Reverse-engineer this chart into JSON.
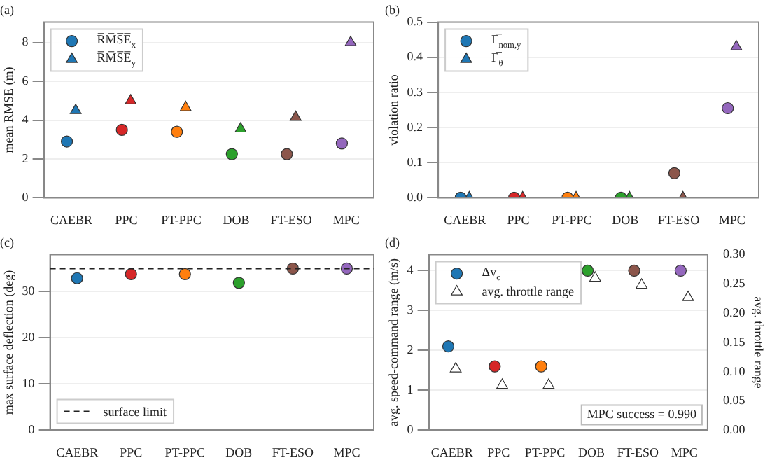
{
  "chart_data": [
    {
      "type": "scatter",
      "title": "(a)",
      "ylabel": "mean RMSE (m)",
      "categories": [
        "CAEBR",
        "PPC",
        "PT-PPC",
        "DOB",
        "FT-ESO",
        "MPC"
      ],
      "ylim": [
        0,
        9.05
      ],
      "yticks": [
        0,
        2,
        4,
        6,
        8
      ],
      "grid": "y",
      "legend": "top left",
      "series": [
        {
          "name": "R̅M̅S̅E̅$_{x}$",
          "marker": "circle",
          "colors": [
            "#1f77b4",
            "#d62728",
            "#ff7f0e",
            "#2ca02c",
            "#8c564b",
            "#9467bd"
          ],
          "values": [
            2.9,
            3.5,
            3.4,
            2.25,
            2.25,
            2.8
          ]
        },
        {
          "name": "R̅M̅S̅E̅$_{y}$",
          "marker": "triangle",
          "colors": [
            "#1f77b4",
            "#d62728",
            "#ff7f0e",
            "#2ca02c",
            "#8c564b",
            "#9467bd"
          ],
          "values": [
            4.5,
            5.0,
            4.65,
            3.55,
            4.15,
            8.0
          ]
        }
      ]
    },
    {
      "type": "scatter",
      "title": "(b)",
      "ylabel": "violation ratio",
      "categories": [
        "CAEBR",
        "PPC",
        "PT-PPC",
        "DOB",
        "FT-ESO",
        "MPC"
      ],
      "ylim": [
        0,
        0.5
      ],
      "yticks": [
        {
          "value": 0,
          "label": "0.0"
        },
        {
          "value": 0.1,
          "label": "0.1"
        },
        {
          "value": 0.2,
          "label": "0.2"
        },
        {
          "value": 0.3,
          "label": "0.3"
        },
        {
          "value": 0.4,
          "label": "0.4"
        },
        {
          "value": 0.5,
          "label": "0.5"
        }
      ],
      "grid": "y",
      "legend": "top left",
      "series": [
        {
          "name": "Γ̅$_{nom,y}$",
          "marker": "circle",
          "colors": [
            "#1f77b4",
            "#d62728",
            "#ff7f0e",
            "#2ca02c",
            "#8c564b",
            "#9467bd"
          ],
          "values": [
            0,
            0,
            0,
            0,
            0.07,
            0.255
          ]
        },
        {
          "name": "Γ̅$_{θ}$",
          "marker": "triangle",
          "colors": [
            "#1f77b4",
            "#d62728",
            "#ff7f0e",
            "#2ca02c",
            "#8c564b",
            "#9467bd"
          ],
          "values": [
            0,
            0,
            0,
            0,
            0,
            0.43
          ]
        }
      ]
    },
    {
      "type": "scatter",
      "title": "(c)",
      "ylabel": "max surface deflection (deg)",
      "categories": [
        "CAEBR",
        "PPC",
        "PT-PPC",
        "DOB",
        "FT-ESO",
        "MPC"
      ],
      "ylim": [
        0,
        38
      ],
      "yticks": [
        0,
        10,
        20,
        30
      ],
      "grid": "y",
      "legend": "bottom left",
      "ref_lines": [
        {
          "axis": "y",
          "value": 35,
          "label": "surface limit",
          "color": "#222222",
          "line_style": "dashed"
        }
      ],
      "series": [
        {
          "marker": "circle",
          "colors": [
            "#1f77b4",
            "#d62728",
            "#ff7f0e",
            "#2ca02c",
            "#8c564b",
            "#9467bd"
          ],
          "values": [
            32.9,
            33.8,
            33.8,
            31.9,
            35,
            35
          ]
        }
      ]
    },
    {
      "type": "scatter",
      "title": "(d)",
      "ylabel": "avg. speed-command range (m/s)",
      "y2label": "avg. throttle range",
      "categories": [
        "CAEBR",
        "PPC",
        "PT-PPC",
        "DOB",
        "FT-ESO",
        "MPC"
      ],
      "ylim": [
        0,
        4.4
      ],
      "yticks": [
        0,
        1,
        2,
        3,
        4
      ],
      "y2lim": [
        0,
        0.3
      ],
      "y2ticks": [
        {
          "value": 0,
          "label": "0.00"
        },
        {
          "value": 0.05,
          "label": "0.05"
        },
        {
          "value": 0.1,
          "label": "0.10"
        },
        {
          "value": 0.15,
          "label": "0.15"
        },
        {
          "value": 0.2,
          "label": "0.20"
        },
        {
          "value": 0.25,
          "label": "0.25"
        },
        {
          "value": 0.3,
          "label": "0.30"
        }
      ],
      "grid": "y",
      "legend": "top left",
      "annotations": [
        "MPC success = 0.990"
      ],
      "series": [
        {
          "name": "Δv$_{c}$",
          "marker": "circle",
          "colors": [
            "#1f77b4",
            "#d62728",
            "#ff7f0e",
            "#2ca02c",
            "#8c564b",
            "#9467bd"
          ],
          "values": [
            2.1,
            1.6,
            1.6,
            4.0,
            4.0,
            4.0
          ]
        },
        {
          "name": "avg. throttle range",
          "marker": "triangle",
          "axis": "y2",
          "color": "#ffffff",
          "values": [
            0.105,
            0.077,
            0.077,
            0.26,
            0.248,
            0.227
          ]
        }
      ]
    }
  ]
}
